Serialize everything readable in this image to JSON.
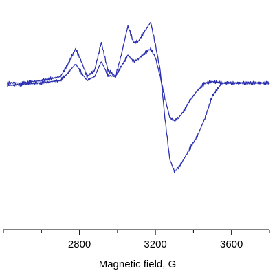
{
  "chart_data": {
    "type": "line",
    "title": "",
    "xlabel": "Magnetic field, G",
    "ylabel": "",
    "xlim": [
      2400,
      3800
    ],
    "ylim": [
      -1.0,
      0.6
    ],
    "x_ticks": [
      2800,
      3200,
      3600
    ],
    "x_tick_labels": [
      "2800",
      "3200",
      "3600"
    ],
    "grid": false,
    "legend": "none",
    "line_color": "#2a2fb0",
    "series": [
      {
        "x": [
          2420,
          2500,
          2600,
          2700,
          2740,
          2780,
          2810,
          2840,
          2880,
          2915,
          2950,
          2990,
          3020,
          3055,
          3085,
          3110,
          3140,
          3175,
          3200,
          3225,
          3250,
          3275,
          3300,
          3325,
          3350,
          3380,
          3420,
          3460,
          3500,
          3550,
          3600,
          3700,
          3800
        ],
        "values": [
          0.0,
          0.0,
          0.02,
          0.05,
          0.15,
          0.27,
          0.17,
          0.05,
          0.1,
          0.32,
          0.1,
          0.05,
          0.22,
          0.45,
          0.32,
          0.33,
          0.4,
          0.48,
          0.3,
          0.1,
          -0.28,
          -0.6,
          -0.7,
          -0.66,
          -0.6,
          -0.52,
          -0.42,
          -0.28,
          -0.1,
          0.0,
          0.0,
          0.0,
          0.0
        ]
      },
      {
        "x": [
          2420,
          2500,
          2600,
          2700,
          2740,
          2780,
          2810,
          2840,
          2880,
          2915,
          2950,
          2990,
          3020,
          3055,
          3085,
          3110,
          3140,
          3175,
          3200,
          3225,
          3250,
          3275,
          3300,
          3325,
          3350,
          3380,
          3420,
          3460,
          3500,
          3550,
          3600,
          3700,
          3800
        ],
        "values": [
          -0.02,
          -0.01,
          0.0,
          0.02,
          0.08,
          0.15,
          0.08,
          0.02,
          0.05,
          0.17,
          0.06,
          0.05,
          0.13,
          0.22,
          0.17,
          0.19,
          0.23,
          0.27,
          0.2,
          0.05,
          -0.12,
          -0.27,
          -0.3,
          -0.27,
          -0.22,
          -0.14,
          -0.06,
          0.0,
          0.01,
          0.0,
          0.0,
          0.0,
          0.0
        ]
      }
    ]
  }
}
